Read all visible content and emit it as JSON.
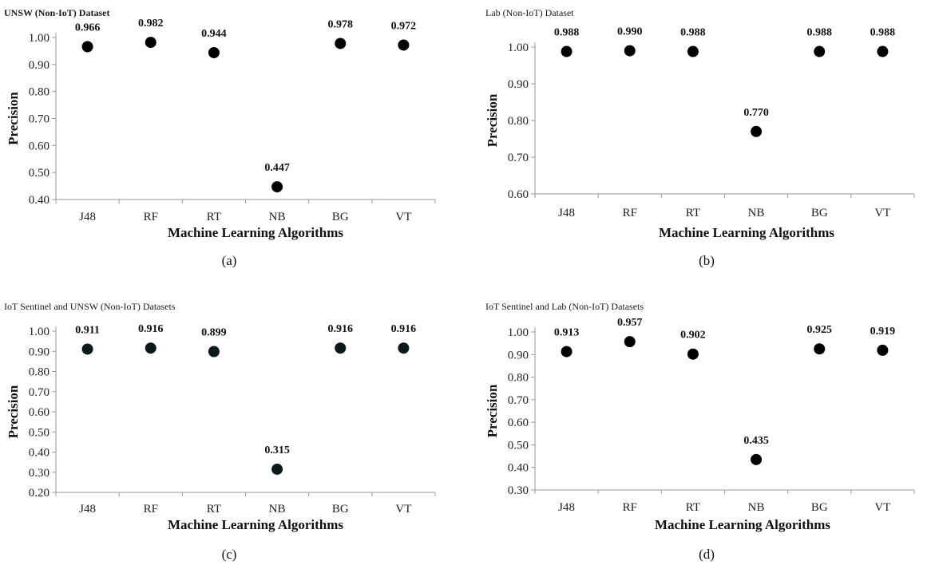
{
  "figure": {
    "captions": [
      "(a)",
      "(b)",
      "(c)",
      "(d)"
    ]
  },
  "chart_data": [
    {
      "type": "scatter",
      "title": "UNSW (Non-IoT) Dataset",
      "title_bold": true,
      "categories": [
        "J48",
        "RF",
        "RT",
        "NB",
        "BG",
        "VT"
      ],
      "values": [
        0.966,
        0.982,
        0.944,
        0.447,
        0.978,
        0.972
      ],
      "data_labels": [
        "0.966",
        "0.982",
        "0.944",
        "0.447",
        "0.978",
        "0.972"
      ],
      "xlabel": "Machine Learning Algorithms",
      "ylabel": "Precision",
      "ylim": [
        0.4,
        1.0
      ],
      "yticks": [
        "0.40",
        "0.50",
        "0.60",
        "0.70",
        "0.80",
        "0.90",
        "1.00"
      ],
      "marker_color": "#000000",
      "grid": false
    },
    {
      "type": "scatter",
      "title": "Lab (Non-IoT) Dataset",
      "title_bold": false,
      "categories": [
        "J48",
        "RF",
        "RT",
        "NB",
        "BG",
        "VT"
      ],
      "values": [
        0.988,
        0.99,
        0.988,
        0.77,
        0.988,
        0.988
      ],
      "data_labels": [
        "0.988",
        "0.990",
        "0.988",
        "0.770",
        "0.988",
        "0.988"
      ],
      "xlabel": "Machine Learning Algorithms",
      "ylabel": "Precision",
      "ylim": [
        0.6,
        1.0
      ],
      "yticks": [
        "0.60",
        "0.70",
        "0.80",
        "0.90",
        "1.00"
      ],
      "marker_color": "#000000",
      "grid": false
    },
    {
      "type": "scatter",
      "title": "IoT Sentinel and UNSW (Non-IoT) Datasets",
      "title_bold": false,
      "categories": [
        "J48",
        "RF",
        "RT",
        "NB",
        "BG",
        "VT"
      ],
      "values": [
        0.911,
        0.916,
        0.899,
        0.315,
        0.916,
        0.916
      ],
      "data_labels": [
        "0.911",
        "0.916",
        "0.899",
        "0.315",
        "0.916",
        "0.916"
      ],
      "xlabel": "Machine Learning Algorithms",
      "ylabel": "Precision",
      "ylim": [
        0.2,
        1.0
      ],
      "yticks": [
        "0.20",
        "0.30",
        "0.40",
        "0.50",
        "0.60",
        "0.70",
        "0.80",
        "0.90",
        "1.00"
      ],
      "marker_color": "#0b1a1a",
      "grid": false
    },
    {
      "type": "scatter",
      "title": "IoT Sentinel and Lab (Non-IoT) Datasets",
      "title_bold": false,
      "categories": [
        "J48",
        "RF",
        "RT",
        "NB",
        "BG",
        "VT"
      ],
      "values": [
        0.913,
        0.957,
        0.902,
        0.435,
        0.925,
        0.919
      ],
      "data_labels": [
        "0.913",
        "0.957",
        "0.902",
        "0.435",
        "0.925",
        "0.919"
      ],
      "xlabel": "Machine Learning Algorithms",
      "ylabel": "Precision",
      "ylim": [
        0.3,
        1.0
      ],
      "yticks": [
        "0.30",
        "0.40",
        "0.50",
        "0.60",
        "0.70",
        "0.80",
        "0.90",
        "1.00"
      ],
      "marker_color": "#000000",
      "grid": false
    }
  ]
}
